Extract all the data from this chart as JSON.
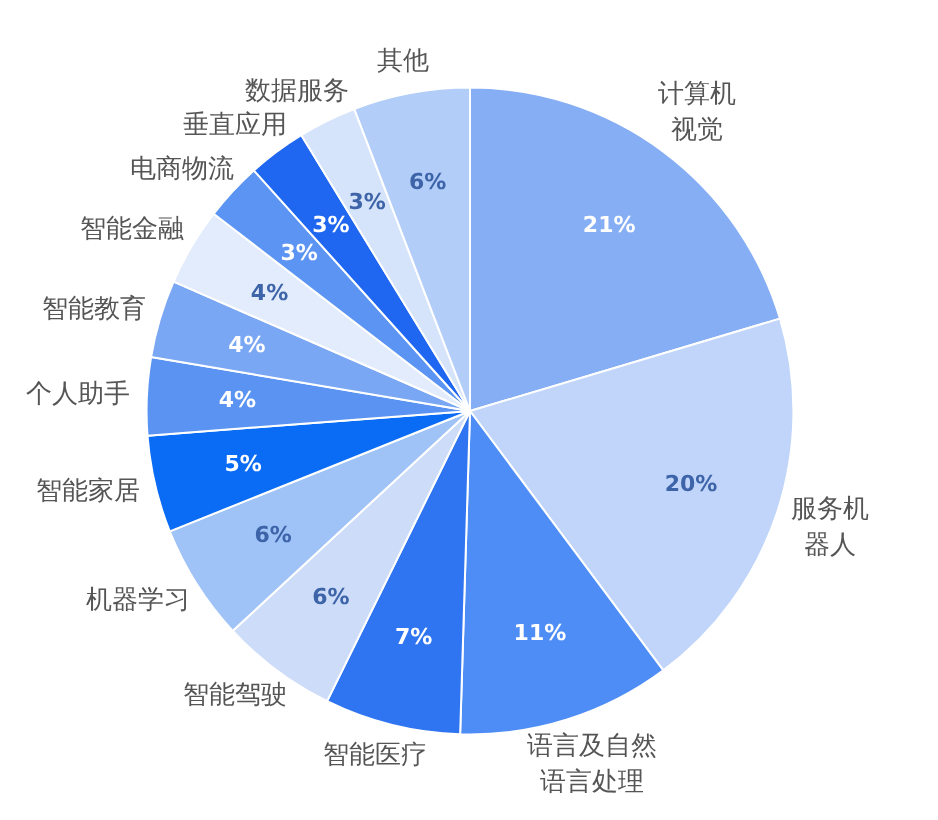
{
  "chart_data": {
    "type": "pie",
    "categories": [
      "计算机视觉",
      "服务机器人",
      "语言及自然语言处理",
      "智能医疗",
      "智能驾驶",
      "机器学习",
      "智能家居",
      "个人助手",
      "智能教育",
      "智能金融",
      "电商物流",
      "垂直应用",
      "数据服务",
      "其他"
    ],
    "values": [
      21,
      20,
      11,
      7,
      6,
      6,
      5,
      4,
      4,
      4,
      3,
      3,
      3,
      6
    ],
    "value_labels": [
      "21%",
      "20%",
      "11%",
      "7%",
      "6%",
      "6%",
      "5%",
      "4%",
      "4%",
      "4%",
      "3%",
      "3%",
      "3%",
      "6%"
    ],
    "colors": [
      "#86aef4",
      "#c0d5f9",
      "#4d8df5",
      "#2f74f0",
      "#cddcf8",
      "#9fc2f7",
      "#0a6cf5",
      "#5a93f2",
      "#7aa7f3",
      "#e3ecfc",
      "#5b94f3",
      "#1f66f0",
      "#d6e4fb",
      "#b3cdf9"
    ]
  }
}
